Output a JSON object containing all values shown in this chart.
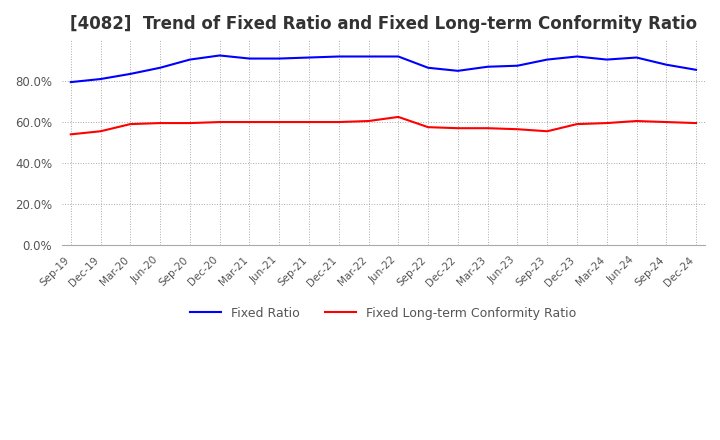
{
  "title": "[4082]  Trend of Fixed Ratio and Fixed Long-term Conformity Ratio",
  "x_labels": [
    "Sep-19",
    "Dec-19",
    "Mar-20",
    "Jun-20",
    "Sep-20",
    "Dec-20",
    "Mar-21",
    "Jun-21",
    "Sep-21",
    "Dec-21",
    "Mar-22",
    "Jun-22",
    "Sep-22",
    "Dec-22",
    "Mar-23",
    "Jun-23",
    "Sep-23",
    "Dec-23",
    "Mar-24",
    "Jun-24",
    "Sep-24",
    "Dec-24"
  ],
  "fixed_ratio": [
    79.5,
    81.0,
    83.5,
    86.5,
    90.5,
    92.5,
    91.0,
    91.0,
    91.5,
    92.0,
    92.0,
    92.0,
    86.5,
    85.0,
    87.0,
    87.5,
    90.5,
    92.0,
    90.5,
    91.5,
    88.0,
    85.5
  ],
  "fixed_lt_ratio": [
    54.0,
    55.5,
    59.0,
    59.5,
    59.5,
    60.0,
    60.0,
    60.0,
    60.0,
    60.0,
    60.5,
    62.5,
    57.5,
    57.0,
    57.0,
    56.5,
    55.5,
    59.0,
    59.5,
    60.5,
    60.0,
    59.5
  ],
  "fixed_ratio_color": "#0000FF",
  "fixed_lt_ratio_color": "#FF0000",
  "ylim": [
    0,
    100
  ],
  "yticks": [
    0,
    20,
    40,
    60,
    80
  ],
  "background_color": "#FFFFFF",
  "grid_color": "#AAAAAA",
  "title_fontsize": 12,
  "legend_labels": [
    "Fixed Ratio",
    "Fixed Long-term Conformity Ratio"
  ]
}
